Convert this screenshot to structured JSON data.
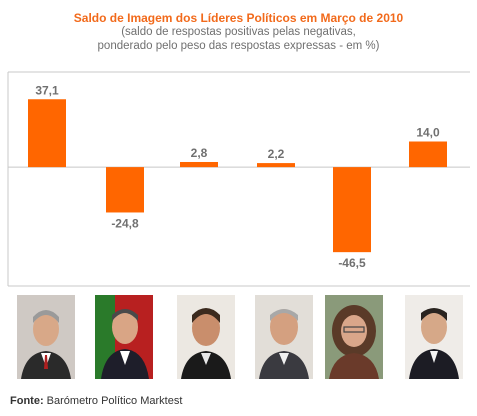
{
  "title": "Saldo de Imagem dos Líderes Políticos em Março de 2010",
  "subtitle_line1": "(saldo de respostas positivas pelas negativas,",
  "subtitle_line2": "ponderado pelo peso das respostas expressas - em %)",
  "source_label": "Fonte:",
  "source_text": "Barómetro Político Marktest",
  "colors": {
    "bar": "#ff6600",
    "title": "#f26a1b",
    "label": "#707070"
  },
  "chart_data": {
    "type": "bar",
    "categories": [
      "",
      "",
      "",
      "",
      "",
      ""
    ],
    "values": [
      37.1,
      -24.8,
      2.8,
      2.2,
      -46.5,
      14.0
    ],
    "value_labels": [
      "37,1",
      "-24,8",
      "2,8",
      "2,2",
      "-46,5",
      "14,0"
    ],
    "title": "Saldo de Imagem dos Líderes Políticos em Março de 2010",
    "xlabel": "",
    "ylabel": "",
    "ylim": [
      -65,
      52
    ],
    "grid": false,
    "legend": "none"
  },
  "photos": [
    {
      "icon": "leader-portrait-1"
    },
    {
      "icon": "leader-portrait-2"
    },
    {
      "icon": "leader-portrait-3"
    },
    {
      "icon": "leader-portrait-4"
    },
    {
      "icon": "leader-portrait-5"
    },
    {
      "icon": "leader-portrait-6"
    }
  ]
}
